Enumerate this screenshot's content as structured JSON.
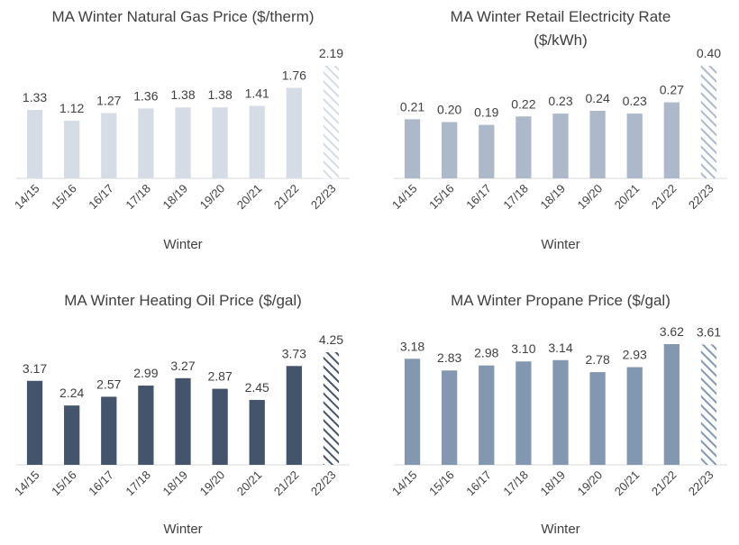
{
  "chart_data": [
    {
      "type": "bar",
      "title": "MA Winter Natural Gas Price ($/therm)",
      "xlabel": "Winter",
      "ylabel": "",
      "categories": [
        "14/15",
        "15/16",
        "16/17",
        "17/18",
        "18/19",
        "19/20",
        "20/21",
        "21/22",
        "22/23"
      ],
      "values": [
        1.33,
        1.12,
        1.27,
        1.36,
        1.38,
        1.38,
        1.41,
        1.76,
        2.19
      ],
      "labels": [
        "1.33",
        "1.12",
        "1.27",
        "1.36",
        "1.38",
        "1.38",
        "1.41",
        "1.76",
        "2.19"
      ],
      "ylim": [
        0,
        2.19
      ],
      "color": "#d6dce5",
      "hatched_last": true,
      "grid": false
    },
    {
      "type": "bar",
      "title": "MA  Winter Retail Electricity Rate ($/kWh)",
      "xlabel": "Winter",
      "ylabel": "",
      "categories": [
        "14/15",
        "15/16",
        "16/17",
        "17/18",
        "18/19",
        "19/20",
        "20/21",
        "21/22",
        "22/23"
      ],
      "values": [
        0.21,
        0.2,
        0.19,
        0.22,
        0.23,
        0.24,
        0.23,
        0.27,
        0.4
      ],
      "labels": [
        "0.21",
        "0.20",
        "0.19",
        "0.22",
        "0.23",
        "0.24",
        "0.23",
        "0.27",
        "0.40"
      ],
      "ylim": [
        0,
        0.4
      ],
      "color": "#adb9ca",
      "hatched_last": true,
      "grid": false
    },
    {
      "type": "bar",
      "title": "MA Winter Heating Oil Price ($/gal)",
      "xlabel": "Winter",
      "ylabel": "",
      "categories": [
        "14/15",
        "15/16",
        "16/17",
        "17/18",
        "18/19",
        "19/20",
        "20/21",
        "21/22",
        "22/23"
      ],
      "values": [
        3.17,
        2.24,
        2.57,
        2.99,
        3.27,
        2.87,
        2.45,
        3.73,
        4.25
      ],
      "labels": [
        "3.17",
        "2.24",
        "2.57",
        "2.99",
        "3.27",
        "2.87",
        "2.45",
        "3.73",
        "4.25"
      ],
      "ylim": [
        0,
        4.25
      ],
      "color": "#44546a",
      "hatched_last": true,
      "grid": false
    },
    {
      "type": "bar",
      "title": "MA Winter Propane Price ($/gal)",
      "xlabel": "Winter",
      "ylabel": "",
      "categories": [
        "14/15",
        "15/16",
        "16/17",
        "17/18",
        "18/19",
        "19/20",
        "20/21",
        "21/22",
        "22/23"
      ],
      "values": [
        3.18,
        2.83,
        2.98,
        3.1,
        3.14,
        2.78,
        2.93,
        3.62,
        3.61
      ],
      "labels": [
        "3.18",
        "2.83",
        "2.98",
        "3.10",
        "3.14",
        "2.78",
        "2.93",
        "3.62",
        "3.61"
      ],
      "ylim": [
        0,
        3.62
      ],
      "color": "#8497b0",
      "hatched_last": true,
      "grid": false
    }
  ]
}
